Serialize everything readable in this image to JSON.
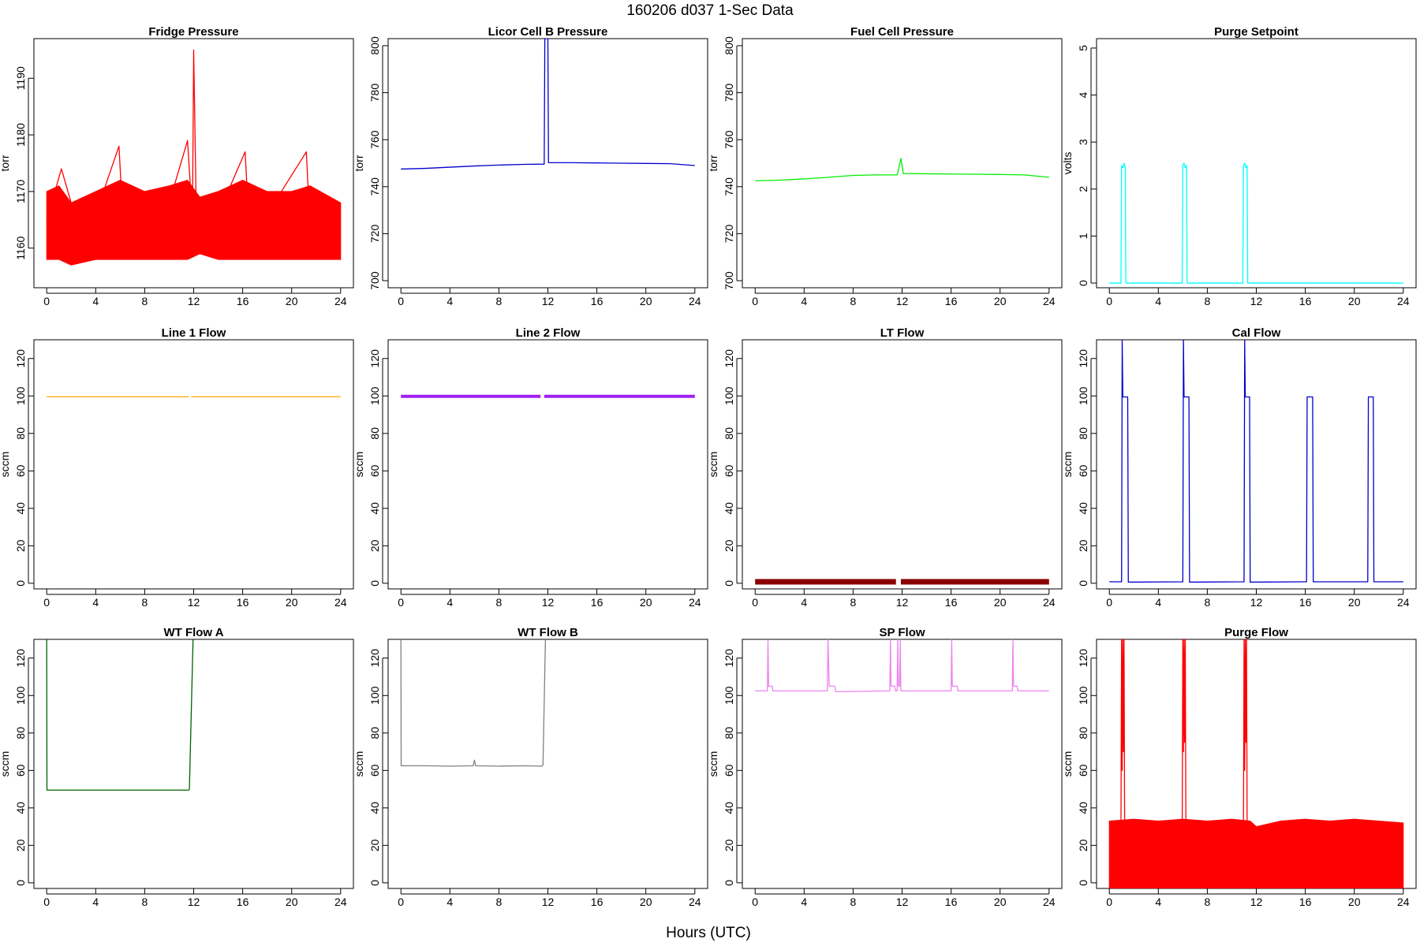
{
  "title": "160206    d037    1-Sec Data",
  "x_axis_title": "Hours (UTC)",
  "chart_data": [
    {
      "type": "line",
      "title": "Fridge Pressure",
      "ylabel": "torr",
      "color": "#ff0000",
      "xlim": [
        0,
        24
      ],
      "ylim": [
        1153,
        1197
      ],
      "x_ticks": [
        0,
        4,
        8,
        12,
        16,
        20,
        24
      ],
      "y_ticks": [
        1160,
        1170,
        1180,
        1190
      ],
      "band": [
        [
          0,
          1158,
          1170
        ],
        [
          1,
          1158,
          1171
        ],
        [
          2,
          1157,
          1168
        ],
        [
          4,
          1158,
          1170
        ],
        [
          6,
          1158,
          1172
        ],
        [
          8,
          1158,
          1170
        ],
        [
          10,
          1158,
          1171
        ],
        [
          11.5,
          1158,
          1172
        ],
        [
          12.5,
          1159,
          1169
        ],
        [
          14,
          1158,
          1170
        ],
        [
          16,
          1158,
          1172
        ],
        [
          18,
          1158,
          1170
        ],
        [
          20,
          1158,
          1170
        ],
        [
          21.5,
          1158,
          1171
        ],
        [
          24,
          1158,
          1168
        ]
      ],
      "series": [
        {
          "x": [
            0,
            1.2,
            2,
            4,
            5.9,
            6.1,
            8,
            10,
            11.5,
            11.9,
            12,
            12.2,
            14,
            16.2,
            16.4,
            18,
            21.2,
            21.4,
            24
          ],
          "y": [
            1165,
            1174,
            1168,
            1166,
            1178,
            1170,
            1166,
            1168,
            1179,
            1165,
            1195,
            1168,
            1166,
            1177,
            1169,
            1166,
            1177,
            1168,
            1166
          ]
        }
      ]
    },
    {
      "type": "line",
      "title": "Licor Cell B Pressure",
      "ylabel": "torr",
      "color": "#0000cd",
      "xlim": [
        0,
        24
      ],
      "ylim": [
        697,
        803
      ],
      "x_ticks": [
        0,
        4,
        8,
        12,
        16,
        20,
        24
      ],
      "y_ticks": [
        700,
        720,
        740,
        760,
        780,
        800
      ],
      "series": [
        {
          "x": [
            0,
            2,
            4,
            6,
            8,
            10,
            11.7,
            11.75,
            11.8,
            12.0,
            12.05,
            14,
            16,
            18,
            20,
            22,
            24
          ],
          "y": [
            747.5,
            747.8,
            748.3,
            748.8,
            749.2,
            749.5,
            749.6,
            803,
            803,
            803,
            750.2,
            750.2,
            750.1,
            750.0,
            749.9,
            749.8,
            749.0
          ]
        }
      ]
    },
    {
      "type": "line",
      "title": "Fuel Cell Pressure",
      "ylabel": "torr",
      "color": "#00ee00",
      "xlim": [
        0,
        24
      ],
      "ylim": [
        697,
        803
      ],
      "x_ticks": [
        0,
        4,
        8,
        12,
        16,
        20,
        24
      ],
      "y_ticks": [
        700,
        720,
        740,
        760,
        780,
        800
      ],
      "series": [
        {
          "x": [
            0,
            2,
            4,
            6,
            8,
            10,
            11.6,
            11.9,
            12.1,
            14,
            16,
            18,
            20,
            22,
            24
          ],
          "y": [
            742.5,
            742.8,
            743.3,
            744.0,
            744.8,
            745.0,
            745.0,
            752.0,
            745.6,
            745.5,
            745.4,
            745.3,
            745.2,
            745.0,
            744.0
          ]
        }
      ]
    },
    {
      "type": "line",
      "title": "Purge Setpoint",
      "ylabel": "volts",
      "color": "#00ffff",
      "xlim": [
        0,
        24
      ],
      "ylim": [
        -0.1,
        5.2
      ],
      "x_ticks": [
        0,
        4,
        8,
        12,
        16,
        20,
        24
      ],
      "y_ticks": [
        0,
        1,
        2,
        3,
        4,
        5
      ],
      "series": [
        {
          "x": [
            0,
            0.95,
            1.0,
            1.1,
            1.2,
            1.3,
            1.35,
            5.95,
            6.0,
            6.1,
            6.2,
            6.3,
            6.35,
            10.9,
            10.95,
            11.05,
            11.15,
            11.25,
            11.3,
            24
          ],
          "y": [
            0,
            0,
            2.5,
            2.45,
            2.55,
            2.45,
            0,
            0,
            2.5,
            2.55,
            2.45,
            2.5,
            0,
            0,
            2.5,
            2.55,
            2.45,
            2.5,
            0,
            0
          ]
        }
      ]
    },
    {
      "type": "line",
      "title": "Line 1 Flow",
      "ylabel": "sccm",
      "color": "#ffa500",
      "xlim": [
        0,
        24
      ],
      "ylim": [
        -3,
        130
      ],
      "x_ticks": [
        0,
        4,
        8,
        12,
        16,
        20,
        24
      ],
      "y_ticks": [
        0,
        20,
        40,
        60,
        80,
        100,
        120
      ],
      "series": [
        {
          "x": [
            0,
            11.6
          ],
          "y": [
            99.6,
            99.6
          ]
        },
        {
          "x": [
            11.8,
            24
          ],
          "y": [
            99.6,
            99.6
          ]
        }
      ]
    },
    {
      "type": "line",
      "title": "Line 2 Flow",
      "ylabel": "sccm",
      "color": "#a020f0",
      "line_width": 4,
      "xlim": [
        0,
        24
      ],
      "ylim": [
        -3,
        130
      ],
      "x_ticks": [
        0,
        4,
        8,
        12,
        16,
        20,
        24
      ],
      "y_ticks": [
        0,
        20,
        40,
        60,
        80,
        100,
        120
      ],
      "series": [
        {
          "x": [
            0,
            11.4
          ],
          "y": [
            99.8,
            99.8
          ]
        },
        {
          "x": [
            11.7,
            24
          ],
          "y": [
            99.8,
            99.8
          ]
        }
      ]
    },
    {
      "type": "line",
      "title": "LT Flow",
      "ylabel": "sccm",
      "color": "#8b0000",
      "line_width": 7,
      "xlim": [
        0,
        24
      ],
      "ylim": [
        -3,
        130
      ],
      "x_ticks": [
        0,
        4,
        8,
        12,
        16,
        20,
        24
      ],
      "y_ticks": [
        0,
        20,
        40,
        60,
        80,
        100,
        120
      ],
      "series": [
        {
          "x": [
            0,
            11.5
          ],
          "y": [
            0.8,
            0.8
          ]
        },
        {
          "x": [
            11.9,
            24
          ],
          "y": [
            0.8,
            0.8
          ]
        }
      ]
    },
    {
      "type": "line",
      "title": "Cal Flow",
      "ylabel": "sccm",
      "color": "#0000cd",
      "xlim": [
        0,
        24
      ],
      "ylim": [
        -3,
        130
      ],
      "x_ticks": [
        0,
        4,
        8,
        12,
        16,
        20,
        24
      ],
      "y_ticks": [
        0,
        20,
        40,
        60,
        80,
        100,
        120
      ],
      "series": [
        {
          "x": [
            0,
            1.0,
            1.05,
            1.1,
            1.15,
            1.5,
            1.55,
            6.0,
            6.05,
            6.1,
            6.15,
            6.5,
            6.55,
            11.0,
            11.05,
            11.1,
            11.15,
            11.45,
            11.5,
            16.1,
            16.15,
            16.6,
            16.65,
            21.1,
            21.15,
            21.55,
            21.6,
            24
          ],
          "y": [
            0.8,
            0.8,
            130,
            99.5,
            99.5,
            99.5,
            0.6,
            0.8,
            130,
            99.5,
            99.5,
            99.5,
            0.6,
            0.8,
            130,
            99.5,
            99.5,
            99.5,
            0.6,
            0.8,
            99.5,
            99.5,
            0.8,
            0.8,
            99.5,
            99.5,
            0.8,
            0.8
          ]
        }
      ]
    },
    {
      "type": "line",
      "title": "WT Flow A",
      "ylabel": "sccm",
      "color": "#006400",
      "xlim": [
        0,
        24
      ],
      "ylim": [
        -3,
        130
      ],
      "x_ticks": [
        0,
        4,
        8,
        12,
        16,
        20,
        24
      ],
      "y_ticks": [
        0,
        20,
        40,
        60,
        80,
        100,
        120
      ],
      "series": [
        {
          "x": [
            0,
            0.02,
            11.6,
            11.65,
            11.95
          ],
          "y": [
            130,
            49.5,
            49.5,
            50.0,
            130
          ]
        }
      ]
    },
    {
      "type": "line",
      "title": "WT Flow B",
      "ylabel": "sccm",
      "color": "#808080",
      "xlim": [
        0,
        24
      ],
      "ylim": [
        -3,
        130
      ],
      "x_ticks": [
        0,
        4,
        8,
        12,
        16,
        20,
        24
      ],
      "y_ticks": [
        0,
        20,
        40,
        60,
        80,
        100,
        120
      ],
      "series": [
        {
          "x": [
            0,
            0.02,
            2,
            4,
            5.9,
            6.0,
            6.1,
            8,
            10,
            11.5,
            11.6,
            11.8
          ],
          "y": [
            130,
            62.5,
            62.5,
            62.3,
            62.5,
            65.5,
            62.5,
            62.3,
            62.5,
            62.3,
            63.0,
            130
          ]
        }
      ]
    },
    {
      "type": "line",
      "title": "SP Flow",
      "ylabel": "sccm",
      "color": "#ee82ee",
      "xlim": [
        0,
        24
      ],
      "ylim": [
        -3,
        130
      ],
      "x_ticks": [
        0,
        4,
        8,
        12,
        16,
        20,
        24
      ],
      "y_ticks": [
        0,
        20,
        40,
        60,
        80,
        100,
        120
      ],
      "series": [
        {
          "x": [
            0,
            1.0,
            1.05,
            1.1,
            1.4,
            1.45,
            5.9,
            5.95,
            6.05,
            6.5,
            6.6,
            11.0,
            11.05,
            11.1,
            11.4,
            11.45,
            11.6,
            11.65,
            11.7,
            11.8,
            11.85,
            11.9,
            16.0,
            16.05,
            16.1,
            16.5,
            16.55,
            21.0,
            21.05,
            21.1,
            21.4,
            21.45,
            24
          ],
          "y": [
            102.5,
            102.5,
            130,
            105,
            105,
            102.5,
            102.5,
            130,
            105,
            105,
            102,
            102.5,
            130,
            105,
            105,
            102.5,
            102.5,
            130,
            105,
            105,
            130,
            102.5,
            102.5,
            130,
            105,
            105,
            102.5,
            102.5,
            130,
            105,
            105,
            102.5,
            102.5
          ]
        }
      ]
    },
    {
      "type": "line",
      "title": "Purge Flow",
      "ylabel": "sccm",
      "color": "#ff0000",
      "xlim": [
        0,
        24
      ],
      "ylim": [
        -3,
        130
      ],
      "x_ticks": [
        0,
        4,
        8,
        12,
        16,
        20,
        24
      ],
      "y_ticks": [
        0,
        20,
        40,
        60,
        80,
        100,
        120
      ],
      "band": [
        [
          0,
          -3,
          33
        ],
        [
          2,
          -3,
          34
        ],
        [
          4,
          -3,
          33
        ],
        [
          6,
          -3,
          34
        ],
        [
          8,
          -3,
          33
        ],
        [
          10,
          -3,
          34
        ],
        [
          11.5,
          -3,
          33
        ],
        [
          12,
          -3,
          30
        ],
        [
          14,
          -3,
          33
        ],
        [
          16,
          -3,
          34
        ],
        [
          18,
          -3,
          33
        ],
        [
          20,
          -3,
          34
        ],
        [
          22,
          -3,
          33
        ],
        [
          24,
          -3,
          32
        ]
      ],
      "series": [
        {
          "x": [
            0.95,
            1.0,
            1.05,
            1.1,
            1.15,
            1.2,
            1.25
          ],
          "y": [
            30,
            130,
            60,
            130,
            70,
            130,
            30
          ]
        },
        {
          "x": [
            5.95,
            6.0,
            6.05,
            6.1,
            6.15,
            6.2,
            6.25
          ],
          "y": [
            30,
            130,
            70,
            130,
            75,
            130,
            30
          ]
        },
        {
          "x": [
            10.95,
            11.0,
            11.05,
            11.1,
            11.15,
            11.2,
            11.25
          ],
          "y": [
            30,
            130,
            60,
            130,
            75,
            130,
            30
          ]
        }
      ]
    }
  ]
}
